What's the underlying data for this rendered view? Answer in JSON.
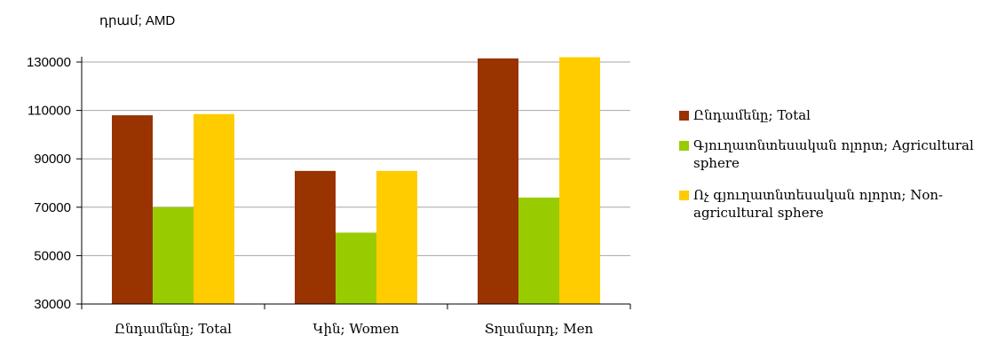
{
  "chart_data": {
    "type": "bar",
    "unit_label": "դրամ; AMD",
    "categories": [
      "Ընդամենը; Total",
      "Կին; Women",
      "Տղամարդ; Men"
    ],
    "series": [
      {
        "name": "Ընդամենը; Total",
        "color": "#993300",
        "values": [
          108000,
          85000,
          131500
        ]
      },
      {
        "name": "Գյուղատնտեսական ոլորտ; Agricultural sphere",
        "color": "#99CC00",
        "values": [
          70000,
          59500,
          74000
        ]
      },
      {
        "name": "Ոչ գյուղատնտեսական ոլորտ; Non-agricultural sphere",
        "color": "#FFCC00",
        "values": [
          108500,
          85000,
          132000
        ]
      }
    ],
    "ylim": [
      30000,
      140000
    ],
    "yticks": [
      30000,
      50000,
      70000,
      90000,
      110000,
      130000
    ],
    "grid": true,
    "legend_position": "right"
  }
}
